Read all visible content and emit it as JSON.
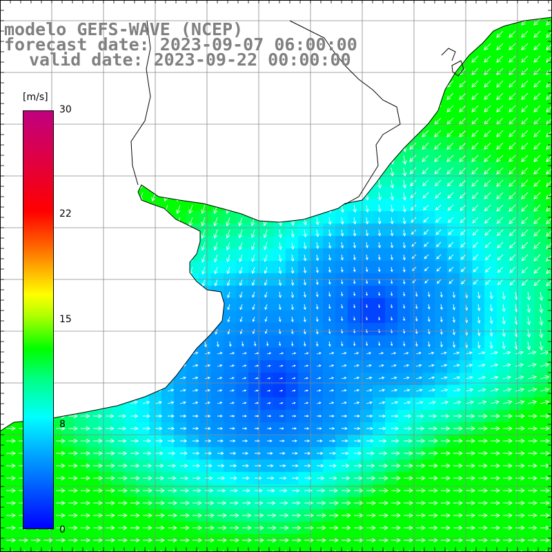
{
  "title": {
    "line1": "modelo GEFS-WAVE (NCEP)",
    "line2": "forecast date: 2023-09-07 06:00:00",
    "line3": "valid date: 2023-09-22 00:00:00"
  },
  "colorbar": {
    "units": "[m/s]",
    "ticks": [
      "30",
      "22",
      "15",
      "8",
      "0"
    ],
    "colors": [
      "#0000ff",
      "#00a8ff",
      "#00ffff",
      "#00ff80",
      "#00ff00",
      "#ffff00",
      "#ff6000",
      "#ff0000",
      "#c00080"
    ]
  },
  "map": {
    "variable": "wind speed and direction",
    "land_color": "#ffffff",
    "coast_color": "#000000",
    "grid_color": "#808080",
    "arrow_color": "#ffffff"
  }
}
